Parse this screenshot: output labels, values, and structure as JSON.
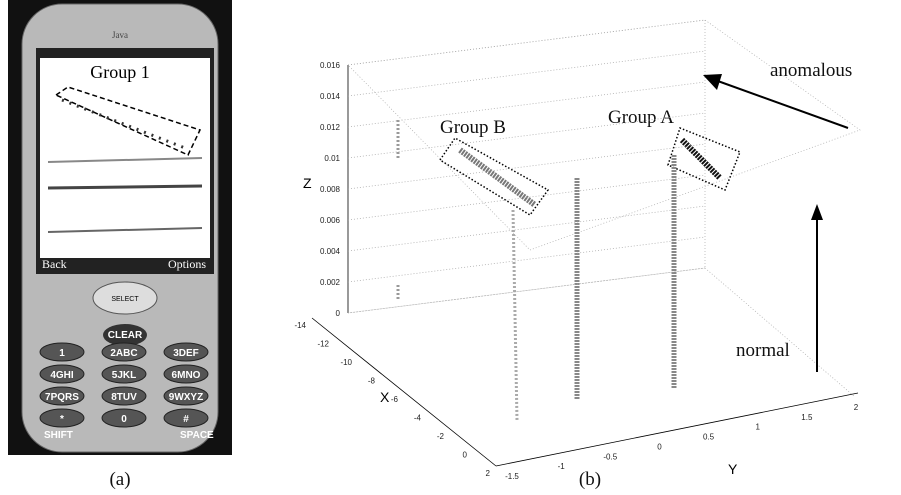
{
  "phone": {
    "brand": "Java",
    "screen_title": "Group 1",
    "softkeys": [
      "Back",
      "Options"
    ],
    "select": "SELECT",
    "clear": "CLEAR",
    "keys": [
      "1",
      "2ABC",
      "3DEF",
      "4GHI",
      "5JKL",
      "6MNO",
      "7PQRS",
      "8TUV",
      "9WXYZ",
      "*",
      "0",
      "#"
    ],
    "shift": "SHIFT",
    "space": "SPACE",
    "caption": "(a)"
  },
  "plot": {
    "z_label": "Z",
    "x_label": "X",
    "y_label": "Y",
    "z_ticks": [
      "0",
      "0.002",
      "0.004",
      "0.006",
      "0.008",
      "0.01",
      "0.012",
      "0.014",
      "0.016"
    ],
    "x_ticks": [
      "-14",
      "-12",
      "-10",
      "-8",
      "-6",
      "-4",
      "-2",
      "0",
      "2"
    ],
    "y_ticks": [
      "-1.5",
      "-1",
      "-0.5",
      "0",
      "0.5",
      "1",
      "1.5",
      "2"
    ],
    "annotations": {
      "group_b": "Group B",
      "group_a": "Group A",
      "anomalous": "anomalous",
      "normal": "normal"
    },
    "caption": "(b)"
  }
}
